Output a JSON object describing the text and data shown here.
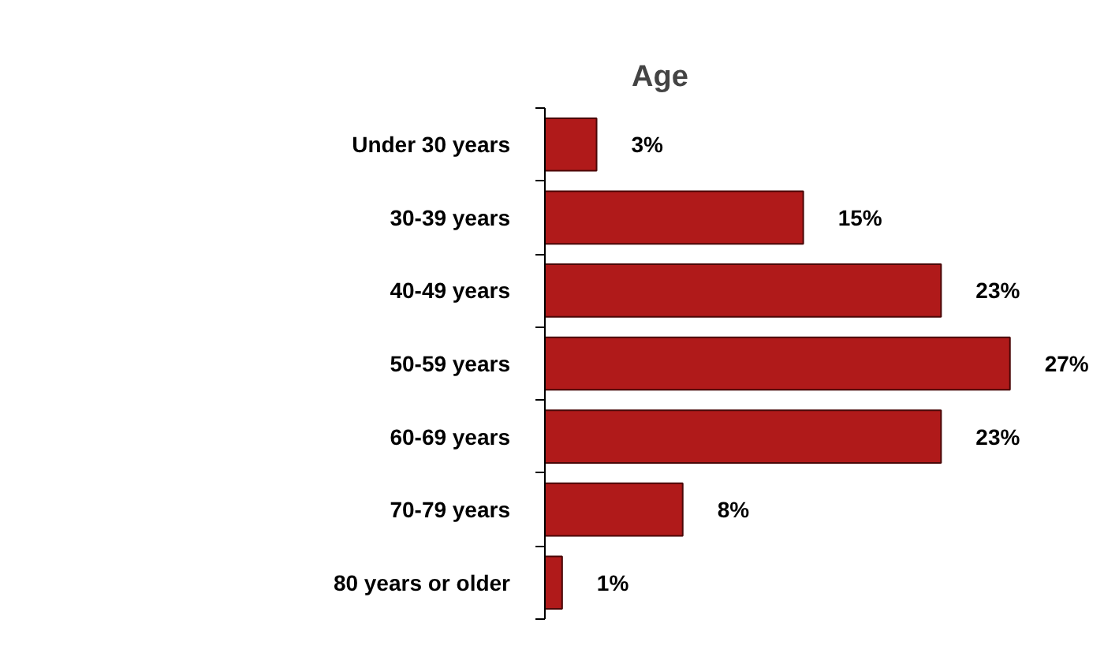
{
  "chart_data": {
    "type": "bar",
    "orientation": "horizontal",
    "title": "Age",
    "categories": [
      "Under 30 years",
      "30-39 years",
      "40-49 years",
      "50-59 years",
      "60-69 years",
      "70-79 years",
      "80 years or older"
    ],
    "values": [
      3,
      15,
      23,
      27,
      23,
      8,
      1
    ],
    "value_labels": [
      "3%",
      "15%",
      "23%",
      "27%",
      "23%",
      "8%",
      "1%"
    ],
    "color": "#b01a1a",
    "tick_labels": "y",
    "grid": false
  }
}
